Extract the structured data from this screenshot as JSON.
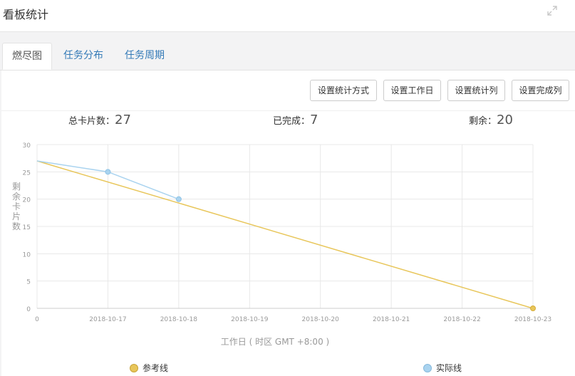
{
  "header": {
    "title": "看板统计",
    "expand_icon": "expand-icon"
  },
  "tabs": [
    {
      "label": "燃尽图",
      "active": true
    },
    {
      "label": "任务分布",
      "active": false
    },
    {
      "label": "任务周期",
      "active": false
    }
  ],
  "toolbar": {
    "buttons": [
      {
        "label": "设置统计方式"
      },
      {
        "label": "设置工作日"
      },
      {
        "label": "设置统计列"
      },
      {
        "label": "设置完成列"
      }
    ]
  },
  "stats": {
    "total_label": "总卡片数：",
    "total_value": "27",
    "done_label": "已完成：",
    "done_value": "7",
    "remaining_label": "剩余：",
    "remaining_value": "20"
  },
  "colors": {
    "reference": "#e8c65a",
    "actual": "#a9d3ef",
    "tab_link": "#337ab7"
  },
  "chart_data": {
    "type": "line",
    "xlabel": "工作日 ( 时区 GMT +8:00 )",
    "ylabel": "剩余卡片数",
    "ylim": [
      0,
      30
    ],
    "yticks": [
      "0",
      "5",
      "10",
      "15",
      "20",
      "25",
      "30"
    ],
    "categories": [
      "0",
      "2018-10-17",
      "2018-10-18",
      "2018-10-19",
      "2018-10-20",
      "2018-10-21",
      "2018-10-22",
      "2018-10-23"
    ],
    "grid": true,
    "legend_position": "bottom",
    "series": [
      {
        "name": "参考线",
        "color": "#e8c65a",
        "values": [
          27,
          null,
          null,
          null,
          null,
          null,
          null,
          0
        ],
        "markers": [
          7
        ]
      },
      {
        "name": "实际线",
        "color": "#a9d3ef",
        "values": [
          27,
          25,
          20,
          null,
          null,
          null,
          null,
          null
        ],
        "markers": [
          1,
          2
        ]
      }
    ]
  }
}
